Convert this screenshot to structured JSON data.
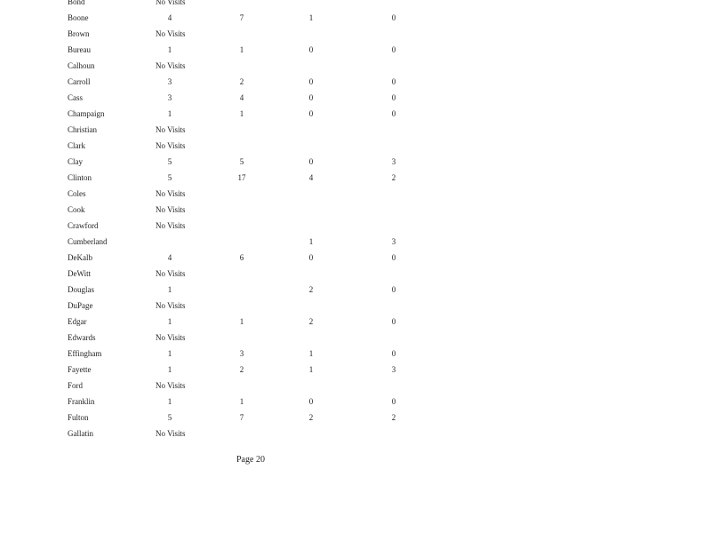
{
  "rows": [
    {
      "county": "Bond",
      "no_visits": "No Visits"
    },
    {
      "county": "Boone",
      "values": [
        "4",
        "7",
        "1",
        "0"
      ]
    },
    {
      "county": "Brown",
      "no_visits": "No Visits"
    },
    {
      "county": "Bureau",
      "values": [
        "1",
        "1",
        "0",
        "0"
      ]
    },
    {
      "county": "Calhoun",
      "no_visits": "No Visits"
    },
    {
      "county": "Carroll",
      "values": [
        "3",
        "2",
        "0",
        "0"
      ]
    },
    {
      "county": "Cass",
      "values": [
        "3",
        "4",
        "0",
        "0"
      ]
    },
    {
      "county": "Champaign",
      "values": [
        "1",
        "1",
        "0",
        "0"
      ]
    },
    {
      "county": "Christian",
      "no_visits": "No Visits"
    },
    {
      "county": "Clark",
      "no_visits": "No Visits"
    },
    {
      "county": "Clay",
      "values": [
        "5",
        "5",
        "0",
        "3"
      ]
    },
    {
      "county": "Clinton",
      "values": [
        "5",
        "17",
        "4",
        "2"
      ]
    },
    {
      "county": "Coles",
      "no_visits": "No Visits"
    },
    {
      "county": "Cook",
      "no_visits": "No Visits"
    },
    {
      "county": "Crawford",
      "no_visits": "No Visits"
    },
    {
      "county": "Cumberland",
      "values": [
        "",
        "",
        "1",
        "3"
      ]
    },
    {
      "county": "DeKalb",
      "values": [
        "4",
        "6",
        "0",
        "0"
      ]
    },
    {
      "county": "DeWitt",
      "no_visits": "No Visits"
    },
    {
      "county": "Douglas",
      "values": [
        "1",
        "",
        "2",
        "0"
      ]
    },
    {
      "county": "DuPage",
      "no_visits": "No Visits"
    },
    {
      "county": "Edgar",
      "values": [
        "1",
        "1",
        "2",
        "0"
      ]
    },
    {
      "county": "Edwards",
      "no_visits": "No Visits"
    },
    {
      "county": "Effingham",
      "values": [
        "1",
        "3",
        "1",
        "0"
      ]
    },
    {
      "county": "Fayette",
      "values": [
        "1",
        "2",
        "1",
        "3"
      ]
    },
    {
      "county": "Ford",
      "no_visits": "No Visits"
    },
    {
      "county": "Franklin",
      "values": [
        "1",
        "1",
        "0",
        "0"
      ]
    },
    {
      "county": "Fulton",
      "values": [
        "5",
        "7",
        "2",
        "2"
      ]
    },
    {
      "county": "Gallatin",
      "no_visits": "No Visits"
    }
  ],
  "footer": {
    "page_label": "Page 20"
  }
}
